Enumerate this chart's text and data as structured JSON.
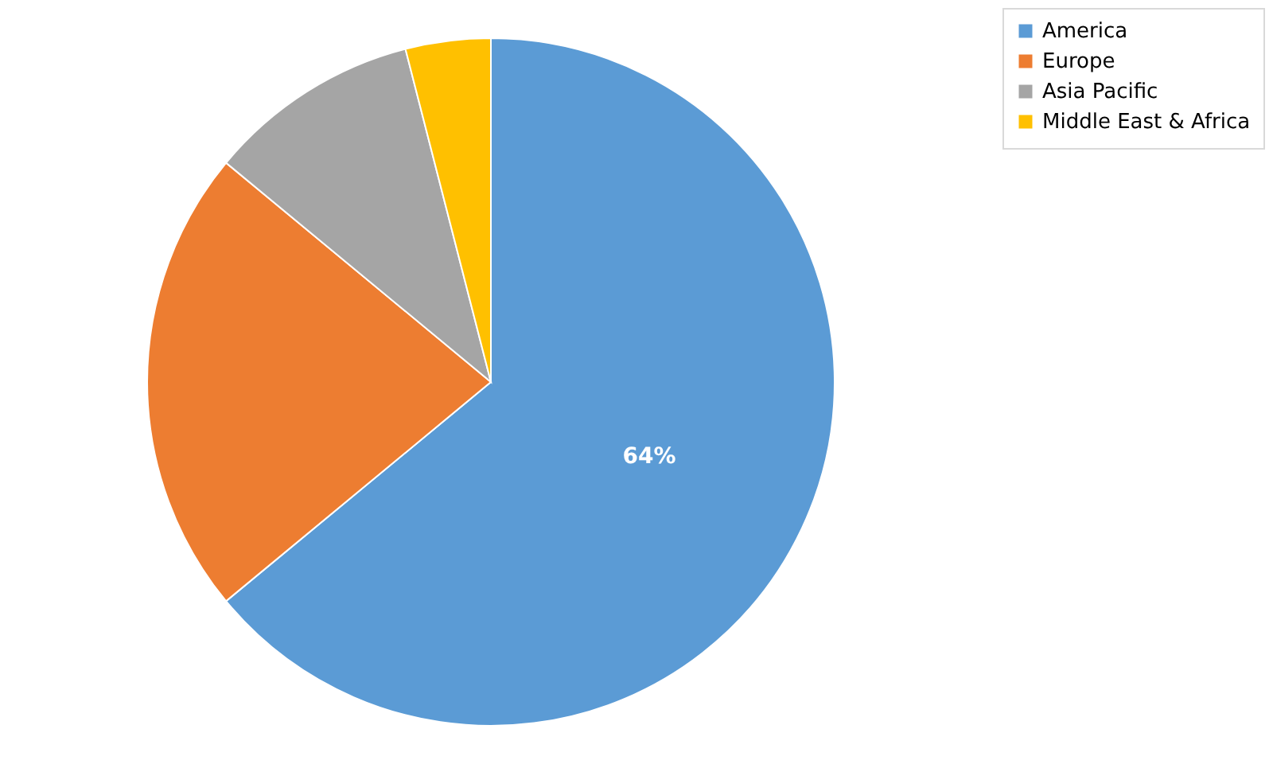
{
  "chart_data": {
    "type": "pie",
    "categories": [
      "America",
      "Europe",
      "Asia Pacific",
      "Middle East & Africa"
    ],
    "values": [
      64,
      22,
      10,
      4
    ],
    "colors": [
      "#5b9bd5",
      "#ed7d31",
      "#a5a5a5",
      "#ffc000"
    ],
    "value_labels": [
      "64%",
      null,
      null,
      null
    ],
    "legend": "right"
  }
}
